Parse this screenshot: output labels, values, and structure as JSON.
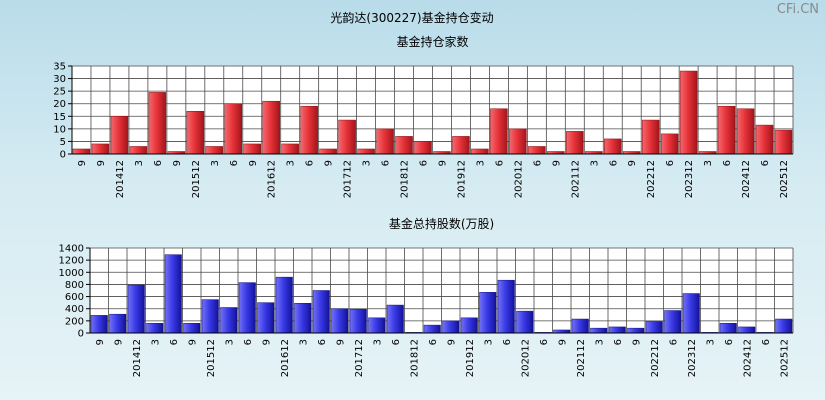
{
  "page": {
    "title": "光韵达(300227)基金持仓变动",
    "watermark": "CFi.CN"
  },
  "chart_data": [
    {
      "type": "bar",
      "title": "基金持仓家数",
      "categories": [
        "9",
        "9",
        "201412",
        "3",
        "6",
        "9",
        "201512",
        "3",
        "6",
        "9",
        "201612",
        "3",
        "6",
        "9",
        "201712",
        "3",
        "6",
        "201812",
        "6",
        "9",
        "201912",
        "3",
        "6",
        "202012",
        "6",
        "9",
        "202112",
        "3",
        "6",
        "9",
        "202212",
        "6",
        "202312",
        "3",
        "6",
        "202412",
        "6",
        "202512"
      ],
      "values": [
        2,
        4,
        15,
        3,
        24.5,
        1,
        17,
        3,
        20,
        4,
        21,
        4,
        19,
        2,
        13.5,
        2,
        10,
        7,
        5,
        1,
        7,
        2,
        18,
        10,
        3,
        1,
        9,
        1,
        6,
        1,
        13.5,
        8,
        33,
        1,
        19,
        18,
        11.5,
        9.5
      ],
      "ylim": [
        0,
        35
      ],
      "yticks": [
        0,
        5,
        10,
        15,
        20,
        25,
        30,
        35
      ],
      "grid": true,
      "color": "#e8333a"
    },
    {
      "type": "bar",
      "title": "基金总持股数(万股)",
      "categories": [
        "9",
        "9",
        "201412",
        "3",
        "6",
        "9",
        "201512",
        "3",
        "6",
        "9",
        "201612",
        "3",
        "6",
        "9",
        "201712",
        "3",
        "6",
        "201812",
        "6",
        "9",
        "201912",
        "3",
        "6",
        "202012",
        "6",
        "9",
        "202112",
        "3",
        "6",
        "9",
        "202212",
        "6",
        "202312",
        "3",
        "6",
        "202412",
        "6",
        "202512"
      ],
      "values": [
        290,
        310,
        790,
        160,
        1290,
        160,
        550,
        420,
        830,
        500,
        920,
        490,
        700,
        400,
        390,
        250,
        460,
        10,
        130,
        200,
        250,
        670,
        870,
        360,
        10,
        50,
        230,
        80,
        100,
        80,
        190,
        370,
        650,
        10,
        160,
        100,
        10,
        230
      ],
      "ylim": [
        0,
        1400
      ],
      "yticks": [
        0,
        200,
        400,
        600,
        800,
        1000,
        1200,
        1400
      ],
      "grid": true,
      "color": "#3a3ae8"
    }
  ]
}
